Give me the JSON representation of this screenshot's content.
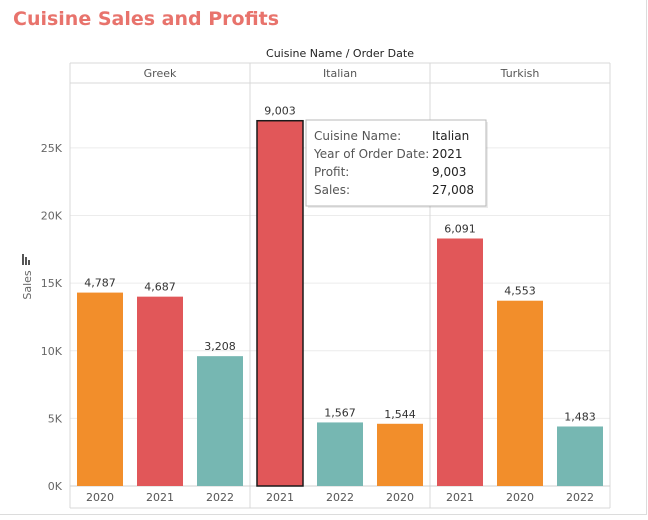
{
  "title": "Cuisine Sales and Profits",
  "colors": {
    "title": "#e8736c",
    "2020": "#f28e2b",
    "2021": "#e15759",
    "2022": "#76b7b2",
    "highlight_border": "#1a1a1a"
  },
  "icons": {
    "sort": "bar-sort-icon"
  },
  "tooltip": {
    "rows": [
      {
        "key": "Cuisine Name:",
        "value": "Italian"
      },
      {
        "key": "Year of Order Date:",
        "value": "2021"
      },
      {
        "key": "Profit:",
        "value": "9,003"
      },
      {
        "key": "Sales:",
        "value": "27,008"
      }
    ]
  },
  "chart_data": {
    "type": "bar",
    "column_header": "Cuisine Name / Order Date",
    "ylabel": "Sales",
    "ylim": [
      0,
      29800
    ],
    "yticks": [
      0,
      5000,
      10000,
      15000,
      20000,
      25000
    ],
    "ytick_labels": [
      "0K",
      "5K",
      "10K",
      "15K",
      "20K",
      "25K"
    ],
    "grid": true,
    "panels": [
      {
        "name": "Greek",
        "bars": [
          {
            "year": "2020",
            "sales": 14300,
            "label": "4,787"
          },
          {
            "year": "2021",
            "sales": 14000,
            "label": "4,687"
          },
          {
            "year": "2022",
            "sales": 9600,
            "label": "3,208"
          }
        ]
      },
      {
        "name": "Italian",
        "bars": [
          {
            "year": "2021",
            "sales": 27008,
            "label": "9,003",
            "highlighted": true
          },
          {
            "year": "2022",
            "sales": 4700,
            "label": "1,567"
          },
          {
            "year": "2020",
            "sales": 4600,
            "label": "1,544"
          }
        ]
      },
      {
        "name": "Turkish",
        "bars": [
          {
            "year": "2021",
            "sales": 18300,
            "label": "6,091"
          },
          {
            "year": "2020",
            "sales": 13700,
            "label": "4,553"
          },
          {
            "year": "2022",
            "sales": 4400,
            "label": "1,483"
          }
        ]
      }
    ]
  }
}
